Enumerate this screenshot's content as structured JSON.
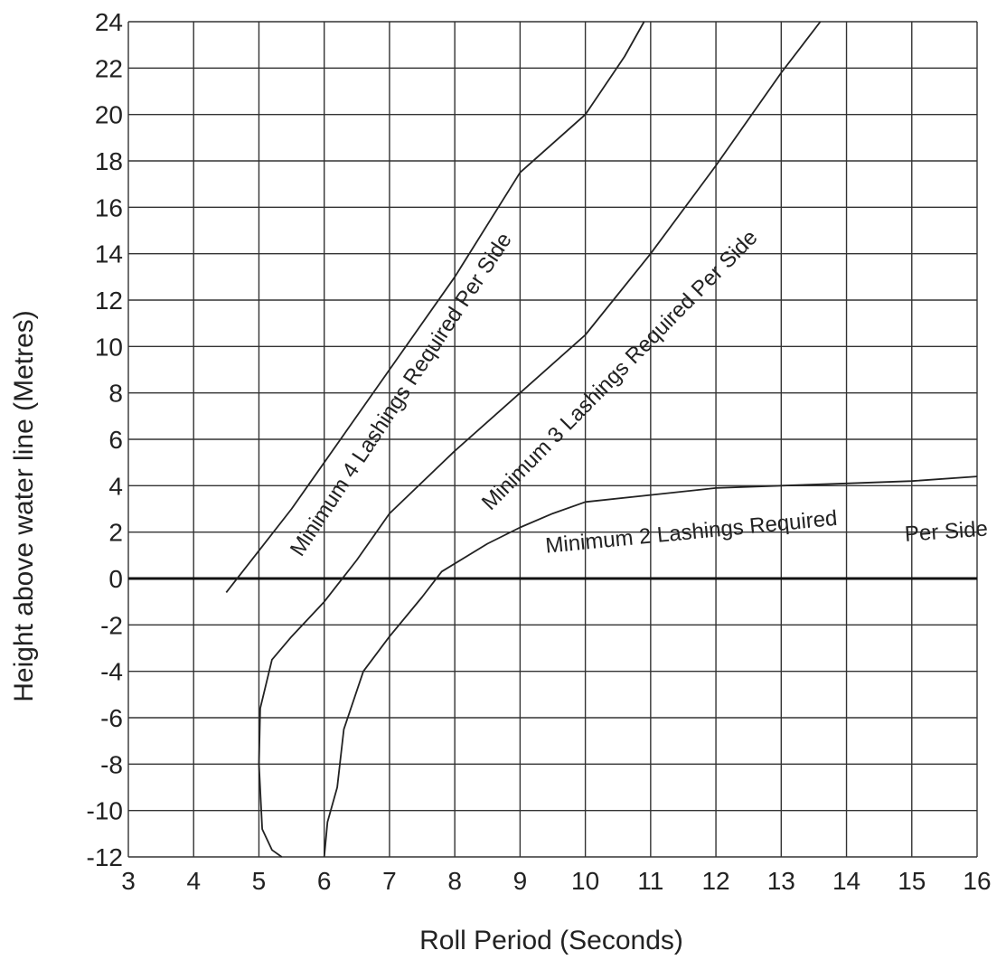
{
  "chart_data": {
    "type": "line",
    "title": "",
    "xlabel": "Roll Period (Seconds)",
    "ylabel": "Height above water line (Metres)",
    "xlim": [
      3,
      16
    ],
    "ylim": [
      -12,
      24
    ],
    "x_ticks": [
      3,
      4,
      5,
      6,
      7,
      8,
      9,
      10,
      11,
      12,
      13,
      14,
      15,
      16
    ],
    "y_ticks": [
      -12,
      -10,
      -8,
      -6,
      -4,
      -2,
      0,
      2,
      4,
      6,
      8,
      10,
      12,
      14,
      16,
      18,
      20,
      22,
      24
    ],
    "grid": true,
    "zero_line": true,
    "series": [
      {
        "name": "Minimum 4 Lashings Required Per Side",
        "points": [
          [
            4.5,
            -0.6
          ],
          [
            5.0,
            1.2
          ],
          [
            5.5,
            3.0
          ],
          [
            6.0,
            5.0
          ],
          [
            7.0,
            9.0
          ],
          [
            8.0,
            13.0
          ],
          [
            9.0,
            17.5
          ],
          [
            10.0,
            20.0
          ],
          [
            10.6,
            22.5
          ],
          [
            10.9,
            24.0
          ]
        ]
      },
      {
        "name": "Minimum 3 Lashings Required Per Side",
        "points": [
          [
            5.35,
            -12.0
          ],
          [
            5.2,
            -11.7
          ],
          [
            5.05,
            -10.8
          ],
          [
            5.0,
            -8.0
          ],
          [
            5.02,
            -5.6
          ],
          [
            5.2,
            -3.5
          ],
          [
            5.5,
            -2.5
          ],
          [
            6.0,
            -1.0
          ],
          [
            6.5,
            0.8
          ],
          [
            7.0,
            2.8
          ],
          [
            8.0,
            5.5
          ],
          [
            9.0,
            8.0
          ],
          [
            10.0,
            10.5
          ],
          [
            11.0,
            14.0
          ],
          [
            12.0,
            17.8
          ],
          [
            13.0,
            21.8
          ],
          [
            13.6,
            24.0
          ]
        ]
      },
      {
        "name": "Minimum 2 Lashings Required Per Side",
        "points": [
          [
            6.0,
            -12.0
          ],
          [
            6.05,
            -10.5
          ],
          [
            6.2,
            -9.0
          ],
          [
            6.3,
            -6.5
          ],
          [
            6.6,
            -4.0
          ],
          [
            7.0,
            -2.5
          ],
          [
            7.5,
            -0.8
          ],
          [
            7.8,
            0.3
          ],
          [
            8.5,
            1.5
          ],
          [
            9.0,
            2.2
          ],
          [
            9.5,
            2.8
          ],
          [
            10.0,
            3.3
          ],
          [
            11.0,
            3.6
          ],
          [
            12.0,
            3.9
          ],
          [
            13.0,
            4.0
          ],
          [
            14.0,
            4.1
          ],
          [
            15.0,
            4.2
          ],
          [
            16.0,
            4.4
          ]
        ]
      }
    ],
    "annotations": [
      {
        "text": "Minimum 4 Lashings Required Per Side",
        "x": 5.65,
        "y": 0.9,
        "angle_deg": -56.5
      },
      {
        "text": "Minimum 3 Lashings Required Per Side",
        "x": 8.55,
        "y": 2.9,
        "angle_deg": -45.5
      },
      {
        "text": "Minimum 2 Lashings Required",
        "x": 9.4,
        "y": 1.1,
        "angle_deg": -5.5
      },
      {
        "text": "Per Side",
        "x": 14.9,
        "y": 1.6,
        "angle_deg": -4.0
      }
    ]
  }
}
